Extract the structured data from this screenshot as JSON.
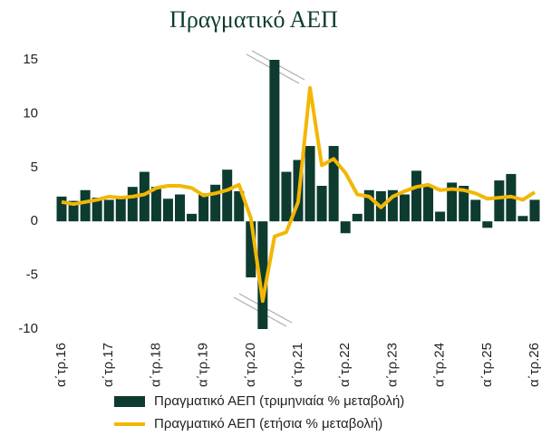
{
  "chart_data": {
    "type": "bar_line",
    "title": "Πραγματικό ΑΕΠ",
    "categories": [
      "α΄τρ.16",
      null,
      null,
      null,
      "α΄τρ.17",
      null,
      null,
      null,
      "α΄τρ.18",
      null,
      null,
      null,
      "α΄τρ.19",
      null,
      null,
      null,
      "α΄τρ.20",
      null,
      null,
      null,
      "α΄τρ.21",
      null,
      null,
      null,
      "α΄τρ.22",
      null,
      null,
      null,
      "α΄τρ.23",
      null,
      null,
      null,
      "α΄τρ.24",
      null,
      null,
      null,
      "α΄τρ.25",
      null,
      null,
      null,
      "α΄τρ.26"
    ],
    "series": [
      {
        "name": "Πραγματικό ΑΕΠ (τριμηνιαία % μεταβολή)",
        "type": "bar",
        "color": "#0d3b30",
        "values": [
          2.3,
          1.9,
          2.9,
          2.2,
          2.0,
          2.2,
          3.2,
          4.6,
          3.2,
          2.1,
          2.5,
          0.7,
          2.6,
          3.4,
          4.8,
          2.8,
          -5.2,
          -10,
          15,
          4.6,
          5.7,
          7.0,
          3.3,
          7.0,
          -1.1,
          0.7,
          2.9,
          2.8,
          2.9,
          2.5,
          4.7,
          3.3,
          0.9,
          3.6,
          3.3,
          2.0,
          -0.6,
          3.8,
          4.4,
          0.5,
          2.0
        ]
      },
      {
        "name": "Πραγματικό ΑΕΠ (ετήσια % μεταβολή)",
        "type": "line",
        "color": "#f2b705",
        "values": [
          1.8,
          1.6,
          1.8,
          2.0,
          2.3,
          2.2,
          2.3,
          2.5,
          3.1,
          3.3,
          3.3,
          3.1,
          2.4,
          2.6,
          2.9,
          3.4,
          0.3,
          -7.4,
          -1.4,
          -1.0,
          1.8,
          12.4,
          5.2,
          5.8,
          4.5,
          2.5,
          2.3,
          1.3,
          2.3,
          2.8,
          3.2,
          3.4,
          2.9,
          3.0,
          2.9,
          2.6,
          2.1,
          2.2,
          2.3,
          2.0,
          2.7
        ]
      }
    ],
    "ylim": [
      -10,
      15
    ],
    "yticks": [
      -10,
      -5,
      0,
      5,
      10,
      15
    ]
  }
}
